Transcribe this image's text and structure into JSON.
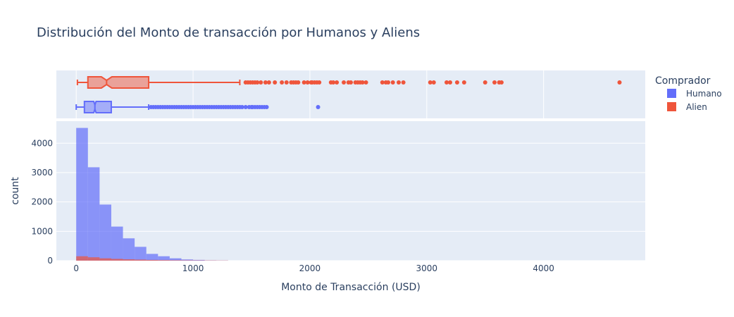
{
  "chart_data": {
    "type": "histogram",
    "title": "Distribución del Monto de transacción por Humanos y Aliens",
    "xlabel": "Monto de Transacción (USD)",
    "ylabel": "count",
    "xlim": [
      -170,
      4870
    ],
    "ylim": [
      0,
      4750
    ],
    "x_ticks": [
      0,
      1000,
      2000,
      3000,
      4000
    ],
    "x_tick_labels": [
      "0",
      "1000",
      "2000",
      "3000",
      "4000"
    ],
    "y_ticks": [
      0,
      1000,
      2000,
      3000,
      4000
    ],
    "y_tick_labels": [
      "0",
      "1000",
      "2000",
      "3000",
      "4000"
    ],
    "bin_width": 100,
    "legend": {
      "title": "Comprador",
      "placement": "right"
    },
    "series": [
      {
        "name": "Humano",
        "color": "#636efa",
        "bin_starts": [
          0,
          100,
          200,
          300,
          400,
          500,
          600,
          700,
          800,
          900,
          1000,
          1100,
          1200
        ],
        "counts": [
          4520,
          3180,
          1910,
          1160,
          760,
          470,
          230,
          150,
          80,
          40,
          25,
          10,
          5
        ],
        "box": {
          "min": 0,
          "q1": 70,
          "median": 160,
          "q3": 300,
          "upper_fence": 620,
          "notch_low": 150,
          "notch_high": 170,
          "outliers": [
            640,
            660,
            680,
            700,
            720,
            740,
            760,
            780,
            800,
            820,
            840,
            860,
            880,
            900,
            920,
            940,
            960,
            980,
            1000,
            1020,
            1040,
            1060,
            1080,
            1100,
            1120,
            1140,
            1160,
            1180,
            1200,
            1220,
            1240,
            1260,
            1280,
            1300,
            1320,
            1340,
            1360,
            1380,
            1400,
            1420,
            1450,
            1480,
            1500,
            1510,
            1530,
            1550,
            1570,
            1590,
            1610,
            1630,
            2070
          ]
        }
      },
      {
        "name": "Alien",
        "color": "#ef553b",
        "bin_starts": [
          0,
          100,
          200,
          300,
          400,
          500,
          600,
          700,
          800,
          900,
          1000,
          1100,
          1200
        ],
        "counts": [
          150,
          115,
          80,
          60,
          45,
          35,
          25,
          20,
          15,
          12,
          10,
          8,
          6
        ],
        "box": {
          "min": 10,
          "q1": 100,
          "median": 260,
          "q3": 620,
          "upper_fence": 1400,
          "notch_low": 215,
          "notch_high": 305,
          "outliers": [
            1450,
            1470,
            1490,
            1510,
            1530,
            1550,
            1580,
            1620,
            1650,
            1700,
            1760,
            1800,
            1840,
            1860,
            1880,
            1900,
            1950,
            1980,
            2010,
            2020,
            2040,
            2060,
            2080,
            2180,
            2200,
            2230,
            2290,
            2330,
            2350,
            2390,
            2410,
            2430,
            2450,
            2480,
            2620,
            2650,
            2670,
            2710,
            2760,
            2800,
            3030,
            3060,
            3170,
            3200,
            3260,
            3320,
            3500,
            3580,
            3620,
            3640,
            4650
          ]
        }
      }
    ]
  }
}
